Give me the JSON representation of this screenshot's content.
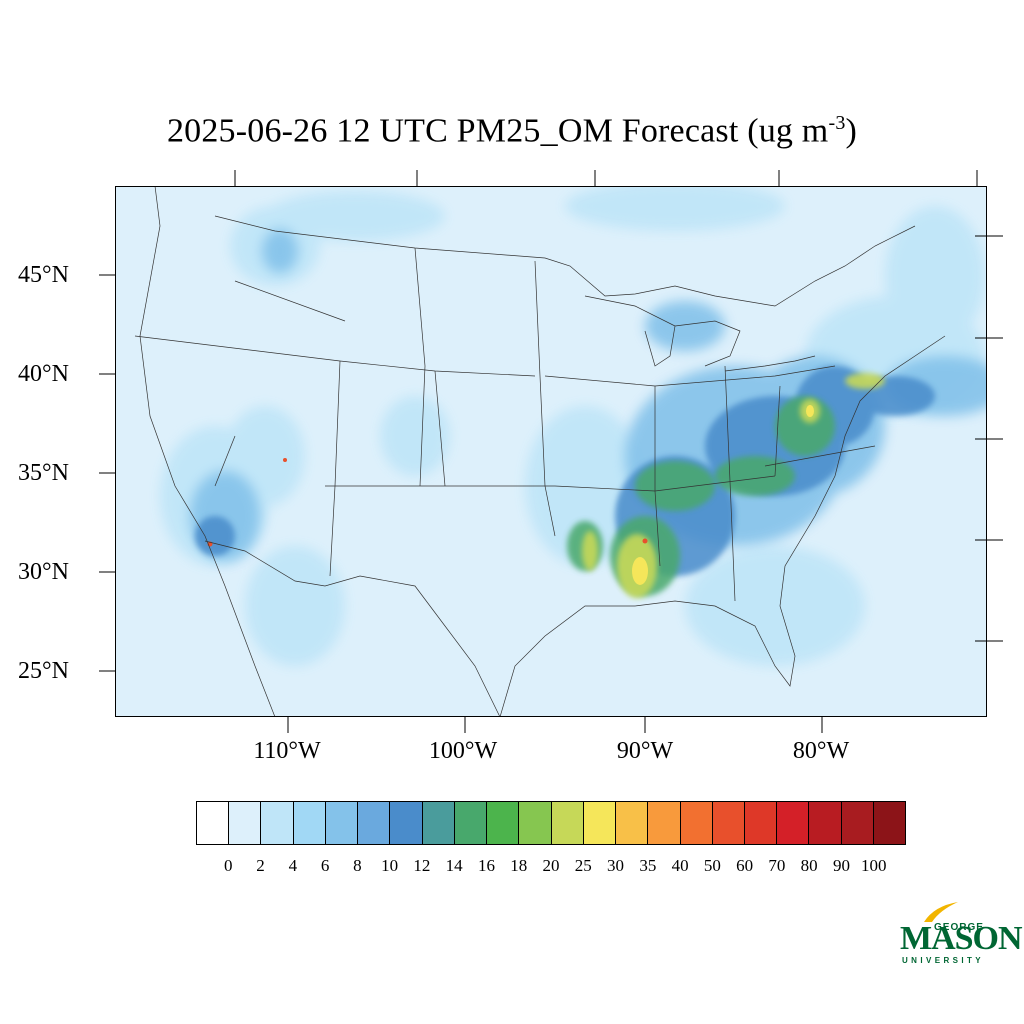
{
  "title": {
    "main": "2025-06-26 12 UTC PM25_OM Forecast (ug m",
    "superscript": "-3",
    "close": ")"
  },
  "map": {
    "region": "Continental United States",
    "projection": "Lambert conformal",
    "lat_labels": [
      "45°N",
      "40°N",
      "35°N",
      "30°N",
      "25°N"
    ],
    "lon_labels": [
      "110°W",
      "100°W",
      "90°W",
      "80°W"
    ],
    "background_color": "#ddf0fb",
    "hotspots_note": "highest concentrations over Louisiana/Mississippi, Tennessee valley and mid-Atlantic coast"
  },
  "colorbar": {
    "labels": [
      "0",
      "2",
      "4",
      "6",
      "8",
      "10",
      "12",
      "14",
      "16",
      "18",
      "20",
      "25",
      "30",
      "35",
      "40",
      "50",
      "60",
      "70",
      "80",
      "90",
      "100"
    ],
    "colors": [
      "#ffffff",
      "#ddf0fb",
      "#bfe5f8",
      "#a1d8f5",
      "#84c2ea",
      "#6aa9de",
      "#4a8ccb",
      "#4a9c9c",
      "#48a86c",
      "#4cb44c",
      "#86c650",
      "#c6d858",
      "#f5e65a",
      "#f8c048",
      "#f89a3c",
      "#f27030",
      "#e8502c",
      "#de3828",
      "#d42028",
      "#b81c22",
      "#a81c20",
      "#8c1418"
    ]
  },
  "logo": {
    "line1": "GEORGE",
    "line2": "MASON",
    "line3": "UNIVERSITY"
  }
}
